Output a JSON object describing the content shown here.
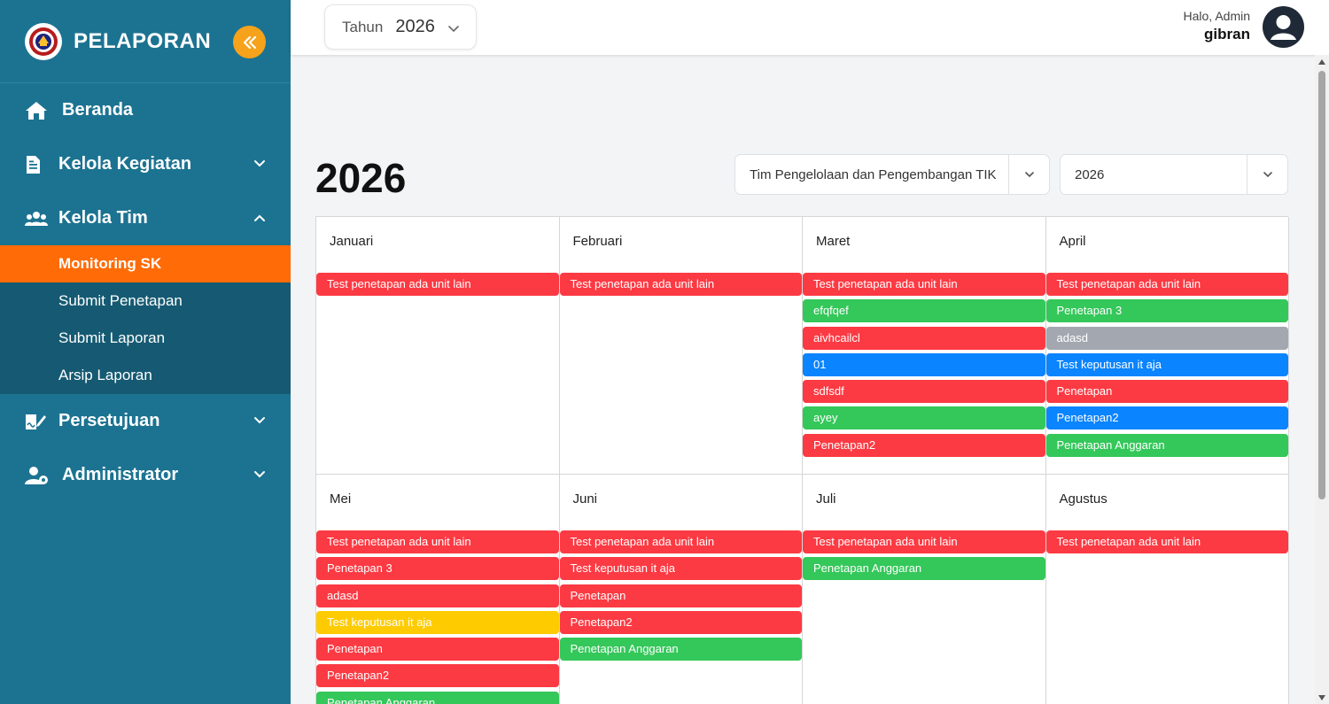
{
  "sidebar": {
    "brand": "PELAPORAN",
    "items": [
      {
        "label": "Beranda"
      },
      {
        "label": "Kelola Kegiatan"
      },
      {
        "label": "Kelola Tim"
      },
      {
        "label": "Persetujuan"
      },
      {
        "label": "Administrator"
      }
    ],
    "submenu": [
      {
        "label": "Monitoring SK",
        "active": true
      },
      {
        "label": "Submit Penetapan"
      },
      {
        "label": "Submit Laporan"
      },
      {
        "label": "Arsip Laporan"
      }
    ]
  },
  "topbar": {
    "year_label": "Tahun",
    "year_value": "2026",
    "greeting": "Halo, Admin",
    "username": "gibran"
  },
  "main": {
    "year_heading": "2026",
    "team_select": "Tim Pengelolaan dan Pengembangan TIK",
    "year_select": "2026"
  },
  "calendar": {
    "months": [
      {
        "name": "Januari",
        "events": [
          {
            "title": "Test penetapan ada unit lain",
            "color": "red"
          }
        ]
      },
      {
        "name": "Februari",
        "events": [
          {
            "title": "Test penetapan ada unit lain",
            "color": "red"
          }
        ]
      },
      {
        "name": "Maret",
        "events": [
          {
            "title": "Test penetapan ada unit lain",
            "color": "red"
          },
          {
            "title": "efqfqef",
            "color": "green"
          },
          {
            "title": "aivhcailcl",
            "color": "red"
          },
          {
            "title": "01",
            "color": "blue"
          },
          {
            "title": "sdfsdf",
            "color": "red"
          },
          {
            "title": "ayey",
            "color": "green"
          },
          {
            "title": "Penetapan2",
            "color": "red"
          }
        ]
      },
      {
        "name": "April",
        "events": [
          {
            "title": "Test penetapan ada unit lain",
            "color": "red"
          },
          {
            "title": "Penetapan 3",
            "color": "green"
          },
          {
            "title": "adasd",
            "color": "gray"
          },
          {
            "title": "Test keputusan it aja",
            "color": "blue"
          },
          {
            "title": "Penetapan",
            "color": "red"
          },
          {
            "title": "Penetapan2",
            "color": "blue"
          },
          {
            "title": "Penetapan Anggaran",
            "color": "green"
          }
        ]
      },
      {
        "name": "Mei",
        "events": [
          {
            "title": "Test penetapan ada unit lain",
            "color": "red"
          },
          {
            "title": "Penetapan 3",
            "color": "red"
          },
          {
            "title": "adasd",
            "color": "red"
          },
          {
            "title": "Test keputusan it aja",
            "color": "yellow"
          },
          {
            "title": "Penetapan",
            "color": "red"
          },
          {
            "title": "Penetapan2",
            "color": "red"
          },
          {
            "title": "Penetapan Anggaran",
            "color": "green"
          }
        ]
      },
      {
        "name": "Juni",
        "events": [
          {
            "title": "Test penetapan ada unit lain",
            "color": "red"
          },
          {
            "title": "Test keputusan it aja",
            "color": "red"
          },
          {
            "title": "Penetapan",
            "color": "red"
          },
          {
            "title": "Penetapan2",
            "color": "red"
          },
          {
            "title": "Penetapan Anggaran",
            "color": "green"
          }
        ]
      },
      {
        "name": "Juli",
        "events": [
          {
            "title": "Test penetapan ada unit lain",
            "color": "red"
          },
          {
            "title": "Penetapan Anggaran",
            "color": "green"
          }
        ]
      },
      {
        "name": "Agustus",
        "events": [
          {
            "title": "Test penetapan ada unit lain",
            "color": "red"
          }
        ]
      }
    ]
  },
  "colors": {
    "sidebar_bg": "#1c7391",
    "submenu_bg": "#155a72",
    "active_item": "#ff6b06",
    "collapse_button": "#f7a21b",
    "event_red": "#fc3a43",
    "event_green": "#34c75a",
    "event_blue": "#0a84ff",
    "event_gray": "#a3a8b0",
    "event_yellow": "#fecb00"
  },
  "icons": {
    "collapse": "double-chevron-left-icon",
    "beranda": "home-icon",
    "kelola_kegiatan": "document-icon",
    "kelola_tim": "users-icon",
    "persetujuan": "signature-icon",
    "administrator": "user-gear-icon",
    "avatar": "user-circle-icon"
  }
}
